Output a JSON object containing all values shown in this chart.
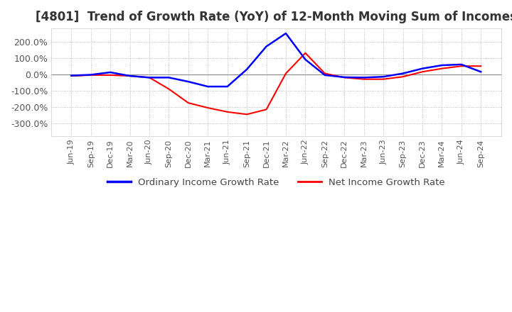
{
  "title": "[4801]  Trend of Growth Rate (YoY) of 12-Month Moving Sum of Incomes",
  "title_fontsize": 12,
  "title_color": "#333333",
  "background_color": "#ffffff",
  "plot_bg_color": "#ffffff",
  "grid_color": "#aaaaaa",
  "ylim": [
    -380,
    280
  ],
  "yticks": [
    -300,
    -200,
    -100,
    0,
    100,
    200
  ],
  "ytick_labels": [
    "-300.0%",
    "-200.0%",
    "-100.0%",
    "0.0%",
    "100.0%",
    "200.0%"
  ],
  "legend_labels": [
    "Ordinary Income Growth Rate",
    "Net Income Growth Rate"
  ],
  "legend_colors": [
    "#0000ff",
    "#ff0000"
  ],
  "x_labels": [
    "Jun-19",
    "Sep-19",
    "Dec-19",
    "Mar-20",
    "Jun-20",
    "Sep-20",
    "Dec-20",
    "Mar-21",
    "Jun-21",
    "Sep-21",
    "Dec-21",
    "Mar-22",
    "Jun-22",
    "Sep-22",
    "Dec-22",
    "Mar-23",
    "Jun-23",
    "Sep-23",
    "Dec-23",
    "Mar-24",
    "Jun-24",
    "Sep-24"
  ],
  "ordinary_income": [
    -8,
    -3,
    12,
    -10,
    -20,
    -20,
    -45,
    -75,
    -75,
    30,
    170,
    250,
    90,
    -5,
    -18,
    -20,
    -15,
    5,
    35,
    55,
    60,
    15
  ],
  "net_income": [
    -10,
    -5,
    -5,
    -10,
    -20,
    -90,
    -175,
    -205,
    -230,
    -245,
    -215,
    5,
    130,
    5,
    -20,
    -30,
    -30,
    -15,
    15,
    35,
    50,
    50
  ]
}
